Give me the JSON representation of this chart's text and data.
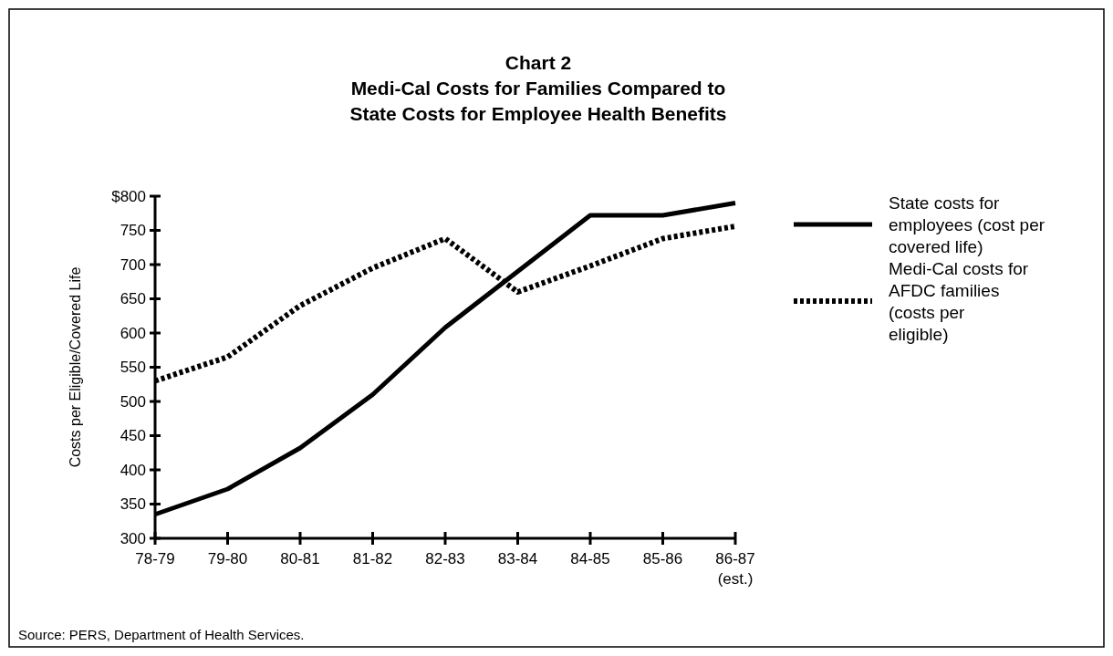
{
  "chart_data": {
    "type": "line",
    "title": "Chart 2\nMedi-Cal Costs for Families Compared to\nState Costs for Employee Health Benefits",
    "ylabel": "Costs per Eligible/Covered Life",
    "categories": [
      "78-79",
      "79-80",
      "80-81",
      "81-82",
      "82-83",
      "83-84",
      "84-85",
      "85-86",
      "86-87 (est.)"
    ],
    "series": [
      {
        "name": "State costs for employees (cost per covered life)",
        "color": "#000000",
        "line_style": "solid",
        "values": [
          335,
          372,
          432,
          510,
          608,
          690,
          772,
          772,
          790
        ]
      },
      {
        "name": "Medi-Cal costs for AFDC families (costs per eligible)",
        "color": "#000000",
        "line_style": "dotted",
        "values": [
          530,
          565,
          640,
          695,
          738,
          660,
          698,
          738,
          756
        ]
      }
    ],
    "ylim": [
      300,
      800
    ],
    "yticks": [
      {
        "value": 300,
        "label": "300"
      },
      {
        "value": 350,
        "label": "350"
      },
      {
        "value": 400,
        "label": "400"
      },
      {
        "value": 450,
        "label": "450"
      },
      {
        "value": 500,
        "label": "500"
      },
      {
        "value": 550,
        "label": "550"
      },
      {
        "value": 600,
        "label": "600"
      },
      {
        "value": 650,
        "label": "650"
      },
      {
        "value": 700,
        "label": "700"
      },
      {
        "value": 750,
        "label": "750"
      },
      {
        "value": 800,
        "label": "$800"
      }
    ],
    "legend": "right",
    "grid": false,
    "marker": "none",
    "annotations": [
      "Source: PERS, Department of Health Services."
    ]
  }
}
